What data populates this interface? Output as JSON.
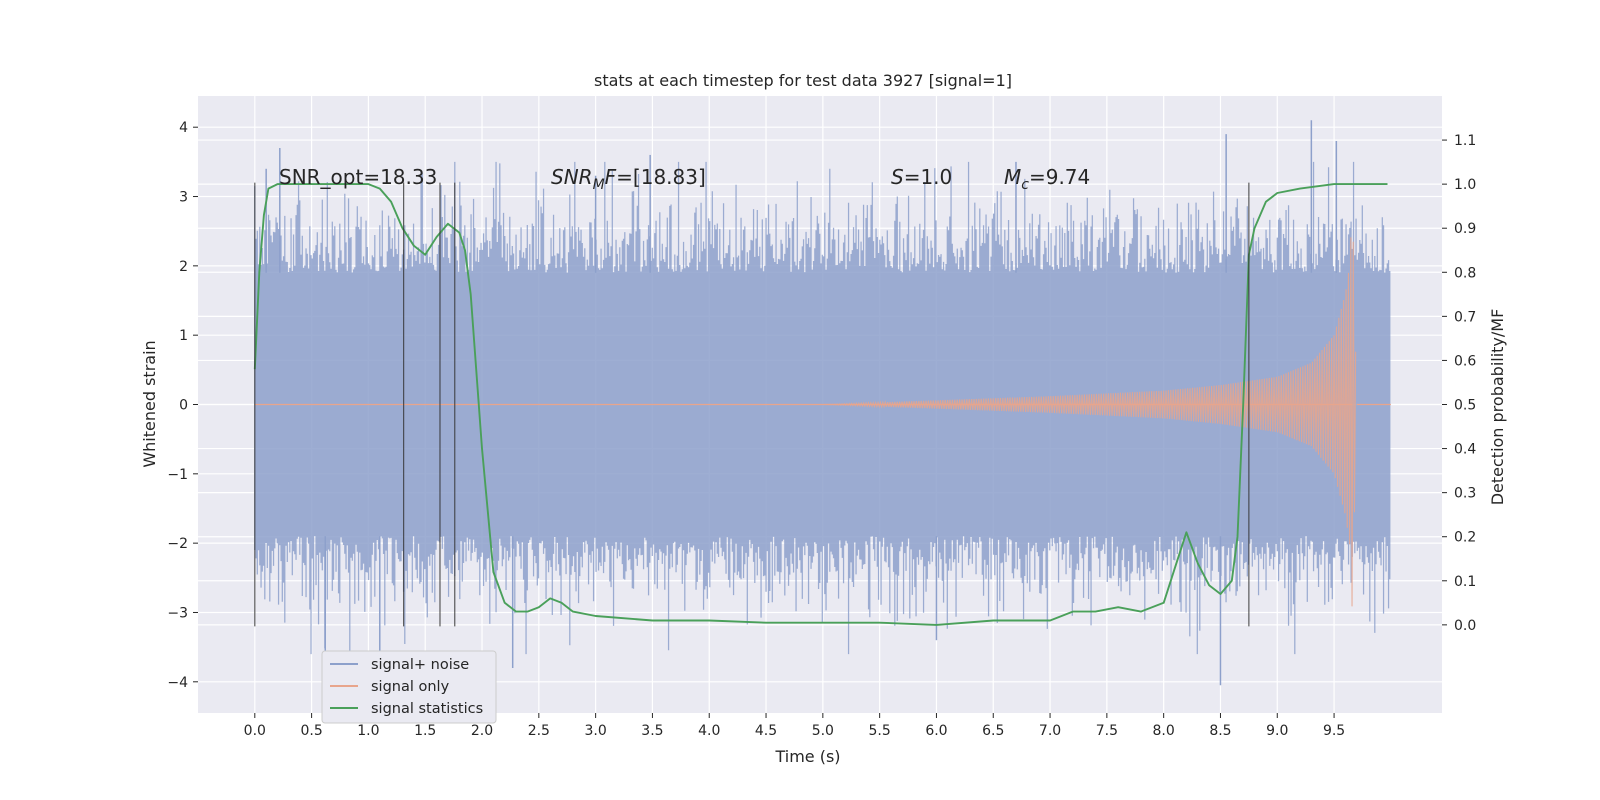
{
  "chart_data": {
    "type": "line",
    "title": "stats at each timestep for test data 3927 [signal=1]",
    "xlabel": "Time (s)",
    "ylabel_left": "Whitened strain",
    "ylabel_right": "Detection probability/MF",
    "xlim": [
      -0.5,
      10.45
    ],
    "ylim_left": [
      -4.45,
      4.45
    ],
    "ylim_right": [
      -0.2,
      1.2
    ],
    "xticks": [
      0.0,
      0.5,
      1.0,
      1.5,
      2.0,
      2.5,
      3.0,
      3.5,
      4.0,
      4.5,
      5.0,
      5.5,
      6.0,
      6.5,
      7.0,
      7.5,
      8.0,
      8.5,
      9.0,
      9.5
    ],
    "xtick_labels": [
      "0.0",
      "0.5",
      "1.0",
      "1.5",
      "2.0",
      "2.5",
      "3.0",
      "3.5",
      "4.0",
      "4.5",
      "5.0",
      "5.5",
      "6.0",
      "6.5",
      "7.0",
      "7.5",
      "8.0",
      "8.5",
      "9.0",
      "9.5"
    ],
    "yticks_left": [
      4,
      3,
      2,
      1,
      0,
      -1,
      -2,
      -3,
      -4
    ],
    "ytick_labels_left": [
      "4",
      "3",
      "2",
      "1",
      "0",
      "−1",
      "−2",
      "−3",
      "−4"
    ],
    "yticks_right": [
      1.1,
      1.0,
      0.9,
      0.8,
      0.7,
      0.6,
      0.5,
      0.4,
      0.3,
      0.2,
      0.1,
      0.0
    ],
    "ytick_labels_right": [
      "1.1",
      "1.0",
      "0.9",
      "0.8",
      "0.7",
      "0.6",
      "0.5",
      "0.4",
      "0.3",
      "0.2",
      "0.1",
      "0.0"
    ],
    "grid": true,
    "legend_position": "lower-left",
    "annotations": [
      {
        "text": "SNR_opt=18.33",
        "x": 0.2,
        "y": 3.2
      },
      {
        "text": "SNR_MF=[18.83]",
        "x": 2.6,
        "y": 3.2
      },
      {
        "text": "S=1.0",
        "x": 5.6,
        "y": 3.2
      },
      {
        "text": "M_c=9.74",
        "x": 6.6,
        "y": 3.2
      }
    ],
    "vertical_markers_x": [
      0.0,
      1.31,
      1.63,
      1.76,
      8.75
    ],
    "vertical_markers_ylim": [
      -3.2,
      3.2
    ],
    "series": [
      {
        "name": "signal+ noise",
        "axis": "left",
        "color": "#8da0cb",
        "description": "whitened strain noise band, x from 0.0 to 10.0 s",
        "band_amplitude": 1.9,
        "extreme_points": [
          {
            "x": 0.1,
            "y": 3.4
          },
          {
            "x": 0.22,
            "y": 3.7
          },
          {
            "x": 0.62,
            "y": -3.6
          },
          {
            "x": 1.1,
            "y": -3.7
          },
          {
            "x": 2.27,
            "y": -3.8
          },
          {
            "x": 3.0,
            "y": 3.3
          },
          {
            "x": 3.48,
            "y": 3.6
          },
          {
            "x": 6.0,
            "y": -3.4
          },
          {
            "x": 6.7,
            "y": 3.5
          },
          {
            "x": 8.5,
            "y": -4.05
          },
          {
            "x": 8.55,
            "y": 3.9
          },
          {
            "x": 9.3,
            "y": 4.1
          },
          {
            "x": 9.52,
            "y": 3.8
          }
        ]
      },
      {
        "name": "signal only",
        "axis": "left",
        "color": "#e8a58c",
        "description": "chirp signal, amplitude growing toward merger near x=9.66 s",
        "envelope": [
          {
            "x": 5.0,
            "a": 0.0
          },
          {
            "x": 6.0,
            "a": 0.06
          },
          {
            "x": 7.0,
            "a": 0.12
          },
          {
            "x": 8.0,
            "a": 0.2
          },
          {
            "x": 8.5,
            "a": 0.28
          },
          {
            "x": 9.0,
            "a": 0.4
          },
          {
            "x": 9.3,
            "a": 0.6
          },
          {
            "x": 9.5,
            "a": 1.0
          },
          {
            "x": 9.6,
            "a": 1.6
          },
          {
            "x": 9.64,
            "a": 2.05
          },
          {
            "x": 9.66,
            "a": 3.0
          },
          {
            "x": 9.7,
            "a": 0.0
          }
        ]
      },
      {
        "name": "signal statistics",
        "axis": "right",
        "color": "#4aa05a",
        "x": [
          0.0,
          0.04,
          0.08,
          0.12,
          0.2,
          0.4,
          0.6,
          0.8,
          1.0,
          1.1,
          1.2,
          1.3,
          1.4,
          1.5,
          1.6,
          1.7,
          1.8,
          1.85,
          1.9,
          2.0,
          2.1,
          2.2,
          2.3,
          2.4,
          2.5,
          2.6,
          2.7,
          2.8,
          3.0,
          3.5,
          4.0,
          4.5,
          5.0,
          5.5,
          6.0,
          6.5,
          7.0,
          7.2,
          7.4,
          7.6,
          7.8,
          8.0,
          8.1,
          8.2,
          8.3,
          8.4,
          8.5,
          8.6,
          8.65,
          8.7,
          8.75,
          8.8,
          8.9,
          9.0,
          9.2,
          9.5,
          9.8,
          9.97
        ],
        "y": [
          0.58,
          0.8,
          0.93,
          0.99,
          1.0,
          1.0,
          1.0,
          1.0,
          1.0,
          0.99,
          0.96,
          0.9,
          0.86,
          0.84,
          0.88,
          0.91,
          0.89,
          0.85,
          0.75,
          0.4,
          0.12,
          0.05,
          0.03,
          0.03,
          0.04,
          0.06,
          0.05,
          0.03,
          0.02,
          0.01,
          0.01,
          0.005,
          0.005,
          0.005,
          0.0,
          0.01,
          0.01,
          0.03,
          0.03,
          0.04,
          0.03,
          0.05,
          0.13,
          0.21,
          0.14,
          0.09,
          0.07,
          0.1,
          0.2,
          0.5,
          0.84,
          0.9,
          0.96,
          0.98,
          0.99,
          1.0,
          1.0,
          1.0
        ]
      }
    ]
  }
}
